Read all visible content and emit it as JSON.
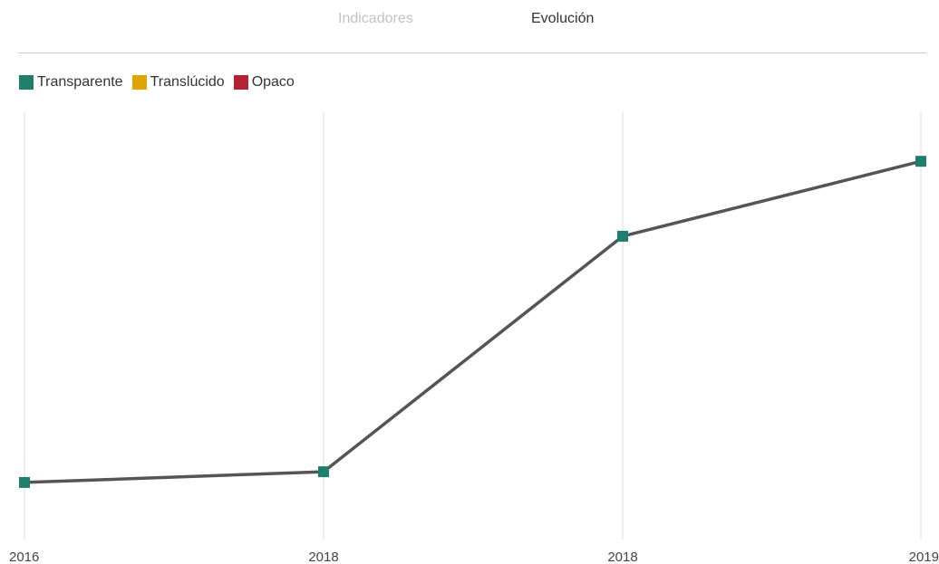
{
  "tabs": [
    {
      "label": "Indicadores",
      "active": false
    },
    {
      "label": "Evolución",
      "active": true
    }
  ],
  "legend": [
    {
      "label": "Transparente",
      "color": "#1e7f6f"
    },
    {
      "label": "Translúcido",
      "color": "#e0a400"
    },
    {
      "label": "Opaco",
      "color": "#b42330"
    }
  ],
  "chart_data": {
    "type": "line",
    "title": "",
    "xlabel": "",
    "ylabel": "",
    "categories": [
      "2016",
      "2018",
      "2018",
      "2019"
    ],
    "series": [
      {
        "name": "Transparente",
        "values": [
          1.6,
          1.9,
          8.5,
          10.6
        ],
        "line_color": "#555555",
        "marker_color": "#1e7f6f"
      }
    ],
    "ylim": [
      0,
      12
    ],
    "grid": "vertical",
    "legend_position": "top-left"
  }
}
